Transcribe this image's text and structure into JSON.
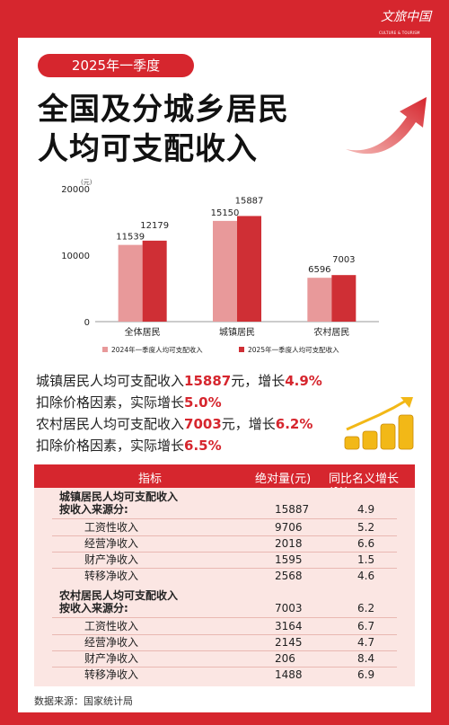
{
  "brand": {
    "name_zh": "文旅中国",
    "name_en": "CULTURE & TOURISM"
  },
  "badge": "2025年一季度",
  "title": {
    "line1": "全国及分城乡居民",
    "line2": "人均可支配收入"
  },
  "chart_data": {
    "type": "bar",
    "unit": "(元)",
    "categories": [
      "全体居民",
      "城镇居民",
      "农村居民"
    ],
    "series": [
      {
        "name": "2024年一季度人均可支配收入",
        "values": [
          11539,
          15150,
          6596
        ],
        "color": "#e8999a"
      },
      {
        "name": "2025年一季度人均可支配收入",
        "values": [
          12179,
          15887,
          7003
        ],
        "color": "#cf2f35"
      }
    ],
    "yticks": [
      "0",
      "10000",
      "20000"
    ],
    "ylim": [
      0,
      20000
    ],
    "legend": "bottom"
  },
  "stats": [
    {
      "pre": "城镇居民人均可支配收入",
      "v1": "15887",
      "mid": "元，增长",
      "v2": "4.9%"
    },
    {
      "pre": "扣除价格因素，实际增长",
      "v1": "5.0%"
    },
    {
      "pre": "农村居民人均可支配收入",
      "v1": "7003",
      "mid": "元，增长",
      "v2": "6.2%"
    },
    {
      "pre": "扣除价格因素，实际增长",
      "v1": "6.5%"
    }
  ],
  "table": {
    "headers": [
      "指标",
      "绝对量(元)",
      "同比名义增长(%)"
    ],
    "urban": {
      "title1": "城镇居民人均可支配收入",
      "title2": "按收入来源分:",
      "amount": "15887",
      "growth": "4.9",
      "rows": [
        {
          "name": "工资性收入",
          "amount": "9706",
          "growth": "5.2"
        },
        {
          "name": "经营净收入",
          "amount": "2018",
          "growth": "6.6"
        },
        {
          "name": "财产净收入",
          "amount": "1595",
          "growth": "1.5"
        },
        {
          "name": "转移净收入",
          "amount": "2568",
          "growth": "4.6"
        }
      ]
    },
    "rural": {
      "title1": "农村居民人均可支配收入",
      "title2": "按收入来源分:",
      "amount": "7003",
      "growth": "6.2",
      "rows": [
        {
          "name": "工资性收入",
          "amount": "3164",
          "growth": "6.7"
        },
        {
          "name": "经营净收入",
          "amount": "2145",
          "growth": "4.7"
        },
        {
          "name": "财产净收入",
          "amount": "206",
          "growth": "8.4"
        },
        {
          "name": "转移净收入",
          "amount": "1488",
          "growth": "6.9"
        }
      ]
    }
  },
  "source": "数据来源：国家统计局",
  "colors": {
    "primary": "#d6262e",
    "table_bg": "#fbe6e3"
  }
}
